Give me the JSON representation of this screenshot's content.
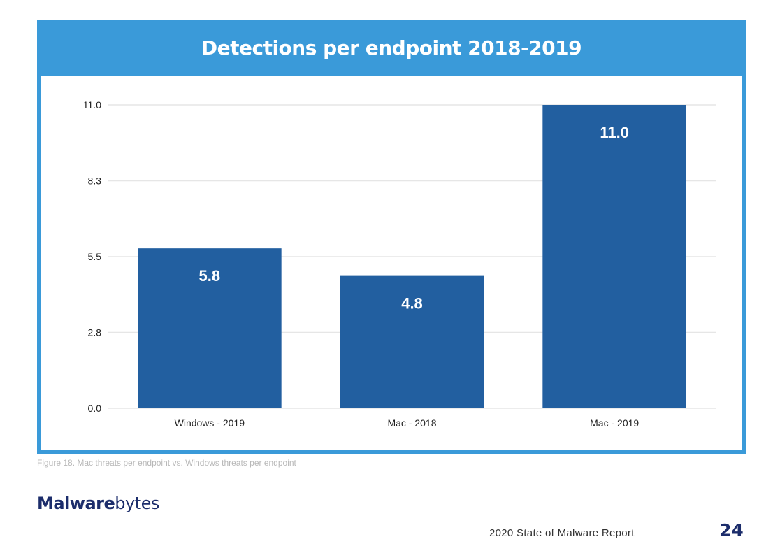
{
  "header": {
    "title": "Detections per endpoint 2018-2019"
  },
  "chart_data": {
    "type": "bar",
    "title": "Detections per endpoint 2018-2019",
    "categories": [
      "Windows - 2019",
      "Mac - 2018",
      "Mac - 2019"
    ],
    "values": [
      5.8,
      4.8,
      11.0
    ],
    "data_labels": [
      "5.8",
      "4.8",
      "11.0"
    ],
    "yticks": [
      "0.0",
      "2.8",
      "5.5",
      "8.3",
      "11.0"
    ],
    "ytick_values": [
      0,
      2.75,
      5.5,
      8.25,
      11.0
    ],
    "ylim": [
      0,
      11.0
    ],
    "xlabel": "",
    "ylabel": "",
    "grid": true,
    "bar_color": "#225fa0",
    "header_color": "#3a9ad9"
  },
  "caption": "Figure 18. Mac threats per endpoint vs. Windows threats per endpoint",
  "footer": {
    "logo_bold": "Malware",
    "logo_light": "bytes",
    "report_title": "2020 State of Malware Report",
    "page_number": "24"
  }
}
